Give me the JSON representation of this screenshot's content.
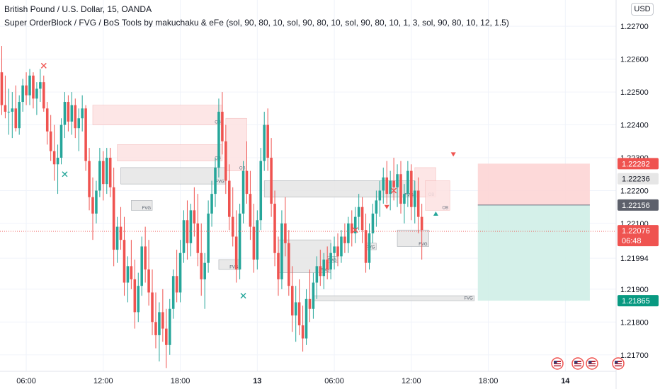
{
  "header": {
    "title": "British Pound / U.S. Dollar, 15, OANDA",
    "indicator": "Super OrderBlock / FVG / BoS Tools by makuchaku & eFe (sol, 90, 80, 10, sol, 90, 80, 10, sol, 90, 80, 10, 1, 3, sol, 90, 80, 10, 12, 1.5)",
    "currency": "USD"
  },
  "colors": {
    "up": "#26a69a",
    "down": "#ef5350",
    "ob_fill": "#fde2e2",
    "fvg_fill": "#e6e6e6",
    "box_border": "#9aa0a6",
    "grid": "#f0f3fa",
    "text": "#131722",
    "target_fill": "#cfeee7",
    "stop_fill": "#fdd5d5",
    "current_price": "#ef5350",
    "target_label": "#089981"
  },
  "chart_data": {
    "type": "candlestick",
    "symbol": "GBPUSD",
    "timeframe": "15",
    "ylim": [
      1.2165,
      1.2278
    ],
    "yticks": [
      "1.22700",
      "1.22600",
      "1.22500",
      "1.22400",
      "1.22300",
      "1.22200",
      "1.22100",
      "1.21994",
      "1.21900",
      "1.21800",
      "1.21700"
    ],
    "xticks": [
      {
        "label": "06:00",
        "bar": 7
      },
      {
        "label": "12:00",
        "bar": 29
      },
      {
        "label": "18:00",
        "bar": 51
      },
      {
        "label": "13",
        "bar": 73
      },
      {
        "label": "06:00",
        "bar": 95
      },
      {
        "label": "12:00",
        "bar": 117
      },
      {
        "label": "18:00",
        "bar": 139
      },
      {
        "label": "14",
        "bar": 161
      }
    ],
    "bars_visible": 176,
    "candles": [
      [
        1.2256,
        1.2264,
        1.2243,
        1.2246
      ],
      [
        1.2246,
        1.2255,
        1.2242,
        1.2244
      ],
      [
        1.2244,
        1.2251,
        1.2237,
        1.2244
      ],
      [
        1.2244,
        1.225,
        1.2236,
        1.2245
      ],
      [
        1.2245,
        1.2252,
        1.2238,
        1.2239
      ],
      [
        1.2239,
        1.2249,
        1.2237,
        1.2247
      ],
      [
        1.2247,
        1.2254,
        1.2244,
        1.2252
      ],
      [
        1.2252,
        1.2256,
        1.2246,
        1.2249
      ],
      [
        1.2249,
        1.2257,
        1.2246,
        1.2255
      ],
      [
        1.2255,
        1.2256,
        1.2245,
        1.2248
      ],
      [
        1.2248,
        1.2253,
        1.2243,
        1.2251
      ],
      [
        1.2251,
        1.2257,
        1.2247,
        1.2253
      ],
      [
        1.2253,
        1.2255,
        1.2244,
        1.2245
      ],
      [
        1.2245,
        1.2247,
        1.2234,
        1.2238
      ],
      [
        1.2238,
        1.2243,
        1.2229,
        1.2232
      ],
      [
        1.2232,
        1.224,
        1.2223,
        1.2228
      ],
      [
        1.2228,
        1.2234,
        1.2219,
        1.223
      ],
      [
        1.223,
        1.2242,
        1.2228,
        1.224
      ],
      [
        1.224,
        1.225,
        1.2236,
        1.2247
      ],
      [
        1.2247,
        1.2249,
        1.2238,
        1.2241
      ],
      [
        1.2241,
        1.225,
        1.2237,
        1.2246
      ],
      [
        1.2246,
        1.2248,
        1.2236,
        1.2239
      ],
      [
        1.2239,
        1.2245,
        1.2232,
        1.2242
      ],
      [
        1.2242,
        1.2249,
        1.2238,
        1.2245
      ],
      [
        1.2245,
        1.2246,
        1.2226,
        1.2229
      ],
      [
        1.2229,
        1.2233,
        1.2214,
        1.2218
      ],
      [
        1.2218,
        1.2224,
        1.2205,
        1.2213
      ],
      [
        1.2213,
        1.2223,
        1.221,
        1.222
      ],
      [
        1.222,
        1.2233,
        1.2218,
        1.2229
      ],
      [
        1.2229,
        1.2232,
        1.2217,
        1.2222
      ],
      [
        1.2222,
        1.2233,
        1.2219,
        1.223
      ],
      [
        1.223,
        1.2233,
        1.2218,
        1.2221
      ],
      [
        1.2221,
        1.2227,
        1.2197,
        1.2202
      ],
      [
        1.2202,
        1.2212,
        1.2198,
        1.2209
      ],
      [
        1.2209,
        1.2215,
        1.2202,
        1.2205
      ],
      [
        1.2205,
        1.2212,
        1.2188,
        1.2192
      ],
      [
        1.2192,
        1.22,
        1.2186,
        1.2197
      ],
      [
        1.2197,
        1.2205,
        1.219,
        1.2193
      ],
      [
        1.2193,
        1.2199,
        1.2178,
        1.2183
      ],
      [
        1.2183,
        1.2195,
        1.218,
        1.2191
      ],
      [
        1.2191,
        1.2206,
        1.2188,
        1.2203
      ],
      [
        1.2203,
        1.2209,
        1.2192,
        1.2196
      ],
      [
        1.2196,
        1.2205,
        1.2185,
        1.2189
      ],
      [
        1.2189,
        1.2196,
        1.2176,
        1.218
      ],
      [
        1.218,
        1.2189,
        1.2172,
        1.2176
      ],
      [
        1.2176,
        1.2186,
        1.2168,
        1.2183
      ],
      [
        1.2183,
        1.219,
        1.2174,
        1.2178
      ],
      [
        1.2178,
        1.2184,
        1.2166,
        1.2173
      ],
      [
        1.2173,
        1.2187,
        1.217,
        1.2184
      ],
      [
        1.2184,
        1.2196,
        1.2181,
        1.2194
      ],
      [
        1.2194,
        1.2202,
        1.2186,
        1.2189
      ],
      [
        1.2189,
        1.2205,
        1.2186,
        1.2201
      ],
      [
        1.2201,
        1.2214,
        1.2198,
        1.2211
      ],
      [
        1.2211,
        1.2217,
        1.2199,
        1.2204
      ],
      [
        1.2204,
        1.2216,
        1.22,
        1.2214
      ],
      [
        1.2214,
        1.2221,
        1.2206,
        1.221
      ],
      [
        1.221,
        1.2219,
        1.2197,
        1.2201
      ],
      [
        1.2201,
        1.221,
        1.2188,
        1.2193
      ],
      [
        1.2193,
        1.2201,
        1.2184,
        1.2198
      ],
      [
        1.2198,
        1.2217,
        1.2195,
        1.2213
      ],
      [
        1.2213,
        1.2223,
        1.2209,
        1.2219
      ],
      [
        1.2219,
        1.223,
        1.2215,
        1.2227
      ],
      [
        1.2227,
        1.2248,
        1.2224,
        1.2244
      ],
      [
        1.2244,
        1.225,
        1.2231,
        1.2235
      ],
      [
        1.2235,
        1.224,
        1.2219,
        1.2223
      ],
      [
        1.2223,
        1.2228,
        1.2208,
        1.2212
      ],
      [
        1.2212,
        1.2221,
        1.2203,
        1.2206
      ],
      [
        1.2206,
        1.2214,
        1.2192,
        1.2196
      ],
      [
        1.2196,
        1.2216,
        1.2193,
        1.2213
      ],
      [
        1.2213,
        1.2229,
        1.221,
        1.2226
      ],
      [
        1.2226,
        1.2235,
        1.2216,
        1.2219
      ],
      [
        1.2219,
        1.2226,
        1.2205,
        1.2209
      ],
      [
        1.2209,
        1.2216,
        1.2195,
        1.2199
      ],
      [
        1.2199,
        1.2214,
        1.2196,
        1.2211
      ],
      [
        1.2211,
        1.2233,
        1.2208,
        1.2229
      ],
      [
        1.2229,
        1.2244,
        1.2226,
        1.224
      ],
      [
        1.224,
        1.2245,
        1.2226,
        1.223
      ],
      [
        1.223,
        1.2236,
        1.2212,
        1.2216
      ],
      [
        1.2216,
        1.222,
        1.2197,
        1.2201
      ],
      [
        1.2201,
        1.2206,
        1.2188,
        1.2193
      ],
      [
        1.2193,
        1.2214,
        1.219,
        1.221
      ],
      [
        1.221,
        1.2218,
        1.22,
        1.2204
      ],
      [
        1.2204,
        1.2208,
        1.2188,
        1.2191
      ],
      [
        1.2191,
        1.2197,
        1.2177,
        1.2182
      ],
      [
        1.2182,
        1.2191,
        1.2174,
        1.2186
      ],
      [
        1.2186,
        1.2193,
        1.2176,
        1.2179
      ],
      [
        1.2179,
        1.2185,
        1.2171,
        1.2175
      ],
      [
        1.2175,
        1.219,
        1.2173,
        1.2187
      ],
      [
        1.2187,
        1.2196,
        1.218,
        1.2184
      ],
      [
        1.2184,
        1.2195,
        1.2181,
        1.2192
      ],
      [
        1.2192,
        1.22,
        1.2187,
        1.2197
      ],
      [
        1.2197,
        1.2202,
        1.2191,
        1.2194
      ],
      [
        1.2194,
        1.2201,
        1.219,
        1.2199
      ],
      [
        1.2199,
        1.2203,
        1.2193,
        1.2196
      ],
      [
        1.2196,
        1.2204,
        1.2193,
        1.2201
      ],
      [
        1.2201,
        1.2206,
        1.2196,
        1.2203
      ],
      [
        1.2203,
        1.2207,
        1.2197,
        1.22
      ],
      [
        1.22,
        1.2208,
        1.2198,
        1.2206
      ],
      [
        1.2206,
        1.221,
        1.2201,
        1.2204
      ],
      [
        1.2204,
        1.2212,
        1.2201,
        1.221
      ],
      [
        1.221,
        1.2214,
        1.2203,
        1.2207
      ],
      [
        1.2207,
        1.2215,
        1.2204,
        1.2212
      ],
      [
        1.2212,
        1.2219,
        1.2208,
        1.2215
      ],
      [
        1.2215,
        1.2218,
        1.2204,
        1.2208
      ],
      [
        1.2208,
        1.2213,
        1.2195,
        1.2198
      ],
      [
        1.2198,
        1.221,
        1.2196,
        1.2207
      ],
      [
        1.2207,
        1.2216,
        1.2204,
        1.2213
      ],
      [
        1.2213,
        1.222,
        1.2209,
        1.2217
      ],
      [
        1.2217,
        1.2223,
        1.2212,
        1.222
      ],
      [
        1.222,
        1.2227,
        1.2216,
        1.2224
      ],
      [
        1.2224,
        1.2229,
        1.2216,
        1.2219
      ],
      [
        1.2219,
        1.2226,
        1.2214,
        1.2223
      ],
      [
        1.2223,
        1.223,
        1.2217,
        1.2221
      ],
      [
        1.2221,
        1.2228,
        1.2215,
        1.2225
      ],
      [
        1.2225,
        1.2229,
        1.2213,
        1.2216
      ],
      [
        1.2216,
        1.2222,
        1.221,
        1.2219
      ],
      [
        1.2219,
        1.2229,
        1.2215,
        1.2226
      ],
      [
        1.2226,
        1.2228,
        1.2211,
        1.2215
      ],
      [
        1.2215,
        1.2223,
        1.221,
        1.222
      ],
      [
        1.222,
        1.2224,
        1.2207,
        1.2212
      ],
      [
        1.2212,
        1.2216,
        1.2199,
        1.2208
      ]
    ],
    "order_blocks": [
      {
        "label": "OB",
        "y_top": 1.2246,
        "y_bottom": 1.224,
        "bar_start": 26,
        "bar_end": 63
      },
      {
        "label": "OB",
        "y_top": 1.2234,
        "y_bottom": 1.2229,
        "bar_start": 33,
        "bar_end": 63
      },
      {
        "label": "OB",
        "y_top": 1.2227,
        "y_bottom": 1.2218,
        "bar_start": 118,
        "bar_end": 124
      },
      {
        "label": "OB",
        "y_top": 1.2223,
        "y_bottom": 1.2214,
        "bar_start": 121,
        "bar_end": 128
      },
      {
        "label": "OB",
        "y_top": 1.2242,
        "y_bottom": 1.2226,
        "bar_start": 64,
        "bar_end": 70
      }
    ],
    "fvgs": [
      {
        "label": "FVG",
        "y_top": 1.2227,
        "y_bottom": 1.2222,
        "bar_start": 34,
        "bar_end": 64
      },
      {
        "label": "FVG",
        "y_top": 1.2223,
        "y_bottom": 1.2218,
        "bar_start": 75,
        "bar_end": 118
      },
      {
        "label": "FVG",
        "y_top": 1.2208,
        "y_bottom": 1.2203,
        "bar_start": 113,
        "bar_end": 122
      },
      {
        "label": "FVG",
        "y_top": 1.2205,
        "y_bottom": 1.2195,
        "bar_start": 79,
        "bar_end": 94
      },
      {
        "label": "FVG",
        "y_top": 1.2188,
        "y_bottom": 1.2187,
        "bar_start": 89,
        "bar_end": 135
      },
      {
        "label": "FVG",
        "y_top": 1.2199,
        "y_bottom": 1.2196,
        "bar_start": 62,
        "bar_end": 68
      },
      {
        "label": "FVG",
        "y_top": 1.22,
        "y_bottom": 1.2198,
        "bar_start": 93,
        "bar_end": 96
      },
      {
        "label": "FVG",
        "y_top": 1.2204,
        "y_bottom": 1.2202,
        "bar_start": 104,
        "bar_end": 107
      },
      {
        "label": "FVG",
        "y_top": 1.2217,
        "y_bottom": 1.2214,
        "bar_start": 37,
        "bar_end": 43
      }
    ],
    "markers": [
      {
        "type": "x",
        "color": "#ef5350",
        "bar": 12,
        "price": 1.2258
      },
      {
        "type": "x",
        "color": "#26a69a",
        "bar": 18,
        "price": 1.2225
      },
      {
        "type": "x",
        "color": "#26a69a",
        "bar": 69,
        "price": 1.2188
      },
      {
        "type": "x",
        "color": "#ef5350",
        "bar": 101,
        "price": 1.2208
      },
      {
        "type": "x",
        "color": "#ef5350",
        "bar": 112,
        "price": 1.222
      },
      {
        "type": "triangle-down",
        "color": "#ef5350",
        "bar": 110,
        "price": 1.2215
      },
      {
        "type": "triangle-down",
        "color": "#ef5350",
        "bar": 129,
        "price": 1.2231
      },
      {
        "type": "triangle-up",
        "color": "#26a69a",
        "bar": 124,
        "price": 1.2213
      }
    ],
    "position_tool": {
      "bar_start": 136,
      "bar_end": 168,
      "stop_price": 1.22282,
      "entry_price": 1.22156,
      "target_price": 1.21865
    },
    "price_labels": [
      {
        "text": "1.22282",
        "price": 1.22282,
        "style": "red"
      },
      {
        "text": "1.22236",
        "price": 1.22236,
        "style": "gray"
      },
      {
        "text": "1.22156",
        "price": 1.22156,
        "style": "dark"
      },
      {
        "text": "1.21865",
        "price": 1.21865,
        "style": "green"
      }
    ],
    "current_price": {
      "text": "1.22076",
      "countdown": "06:48",
      "price": 1.22076
    }
  }
}
